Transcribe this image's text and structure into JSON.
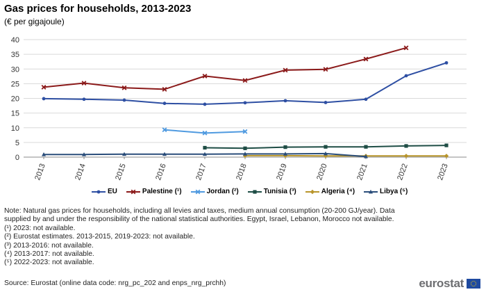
{
  "chart_data": {
    "type": "line",
    "title": "Gas prices for households, 2013-2023",
    "subtitle": "(€ per gigajoule)",
    "categories": [
      "2013",
      "2014",
      "2015",
      "2016",
      "2017",
      "2018",
      "2019",
      "2020",
      "2021",
      "2022",
      "2023"
    ],
    "y_ticks": [
      "0",
      "5",
      "10",
      "15",
      "20",
      "25",
      "30",
      "35",
      "40"
    ],
    "ylim": [
      0,
      40
    ],
    "grid": "horizontal",
    "legend_position": "bottom",
    "series": [
      {
        "name": "EU",
        "legend": "EU",
        "color": "#2e4fa3",
        "marker": "circle",
        "values": [
          19.9,
          19.7,
          19.4,
          18.3,
          18.0,
          18.5,
          19.2,
          18.6,
          19.7,
          27.7,
          32.1
        ]
      },
      {
        "name": "Palestine",
        "legend": "Palestine (¹)",
        "color": "#8b1a1a",
        "marker": "x",
        "values": [
          23.8,
          25.2,
          23.6,
          23.1,
          27.6,
          26.1,
          29.6,
          29.9,
          33.4,
          37.2,
          null
        ]
      },
      {
        "name": "Jordan",
        "legend": "Jordan (²)",
        "color": "#4f9ae0",
        "marker": "x",
        "values": [
          null,
          null,
          null,
          9.3,
          8.2,
          8.7,
          null,
          null,
          null,
          null,
          null
        ]
      },
      {
        "name": "Tunisia",
        "legend": "Tunisia (³)",
        "color": "#1e4d45",
        "marker": "square",
        "values": [
          null,
          null,
          null,
          null,
          3.2,
          3.0,
          3.4,
          3.5,
          3.5,
          3.8,
          4.0
        ]
      },
      {
        "name": "Algeria",
        "legend": "Algeria (⁴)",
        "color": "#b8952a",
        "marker": "diamond",
        "values": [
          null,
          null,
          null,
          null,
          null,
          0.5,
          0.5,
          0.4,
          0.4,
          0.4,
          0.4
        ]
      },
      {
        "name": "Libya",
        "legend": "Libya (⁵)",
        "color": "#2a4d7a",
        "marker": "triangle",
        "values": [
          0.9,
          0.9,
          1.0,
          1.0,
          1.0,
          1.1,
          1.1,
          1.2,
          0.2,
          null,
          null
        ]
      }
    ]
  },
  "notes": [
    "Note: Natural gas prices for households, including all levies and taxes, medium annual consumption (20-200 GJ/year). Data supplied by and under the responsibility of the national statistical authorities. Egypt, Israel, Lebanon, Morocco not available.",
    "(¹) 2023: not available.",
    "(²) Eurostat estimates. 2013-2015, 2019-2023: not available.",
    "(³) 2013-2016: not available.",
    "(⁴) 2013-2017: not available.",
    "(⁵) 2022-2023: not available."
  ],
  "source": "Source: Eurostat (online data code: nrg_pc_202 and enps_nrg_prchh)",
  "logo": {
    "text": "eurostat",
    "flag_color": "#1f4aa0",
    "star_color": "#ffd200"
  }
}
